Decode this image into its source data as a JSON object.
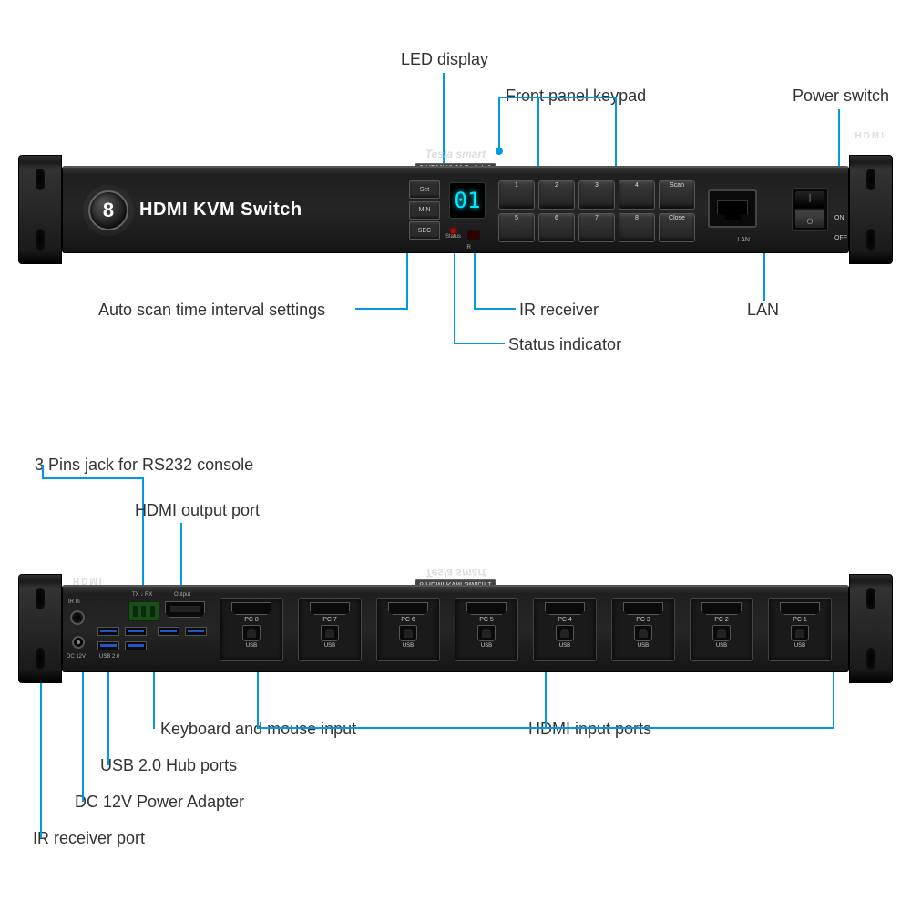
{
  "colors": {
    "callout": "#0099e5",
    "label_text": "#333333",
    "panel_dark": "#1f1f1f",
    "led_glow": "#00eaff"
  },
  "typography": {
    "label_fontsize": 18,
    "panel_tiny": 7
  },
  "product": {
    "brand_line1": "Tesla smart",
    "brand_line2": "8 HDMI KVM Switch 1",
    "logo_number": "8",
    "logo_text": "HDMI KVM Switch",
    "hdmi_word": "HDMI"
  },
  "front": {
    "callouts": {
      "led_display": "LED display",
      "keypad": "Front panel keypad",
      "power_switch": "Power switch",
      "auto_scan": "Auto scan time interval settings",
      "ir_receiver": "IR receiver",
      "status": "Status indicator",
      "lan": "LAN"
    },
    "led_value": "01",
    "set_buttons": [
      "Set",
      "MIN",
      "SEC"
    ],
    "status_label": "Status",
    "ir_label": "IR",
    "lan_label": "LAN",
    "on_label": "ON",
    "off_label": "OFF",
    "keypad_labels": [
      "1",
      "2",
      "3",
      "4",
      "Scan",
      "5",
      "6",
      "7",
      "8",
      "Close"
    ]
  },
  "rear": {
    "callouts": {
      "rs232": "3 Pins jack for RS232 console",
      "hdmi_out": "HDMI output port",
      "km_input": "Keyboard and mouse input",
      "hdmi_in": "HDMI input ports",
      "usb_hub": "USB 2.0 Hub ports",
      "dc12v": "DC 12V Power Adapter",
      "ir_in": "IR receiver port"
    },
    "port_labels": {
      "ir_in": "IR In",
      "dc12v": "DC 12V",
      "usb20": "USB 2.0",
      "txrx": "TX ↓ RX",
      "output": "Output",
      "usb": "USB"
    },
    "pc_ports": [
      "PC 8",
      "PC 7",
      "PC 6",
      "PC 5",
      "PC 4",
      "PC 3",
      "PC 2",
      "PC 1"
    ]
  }
}
